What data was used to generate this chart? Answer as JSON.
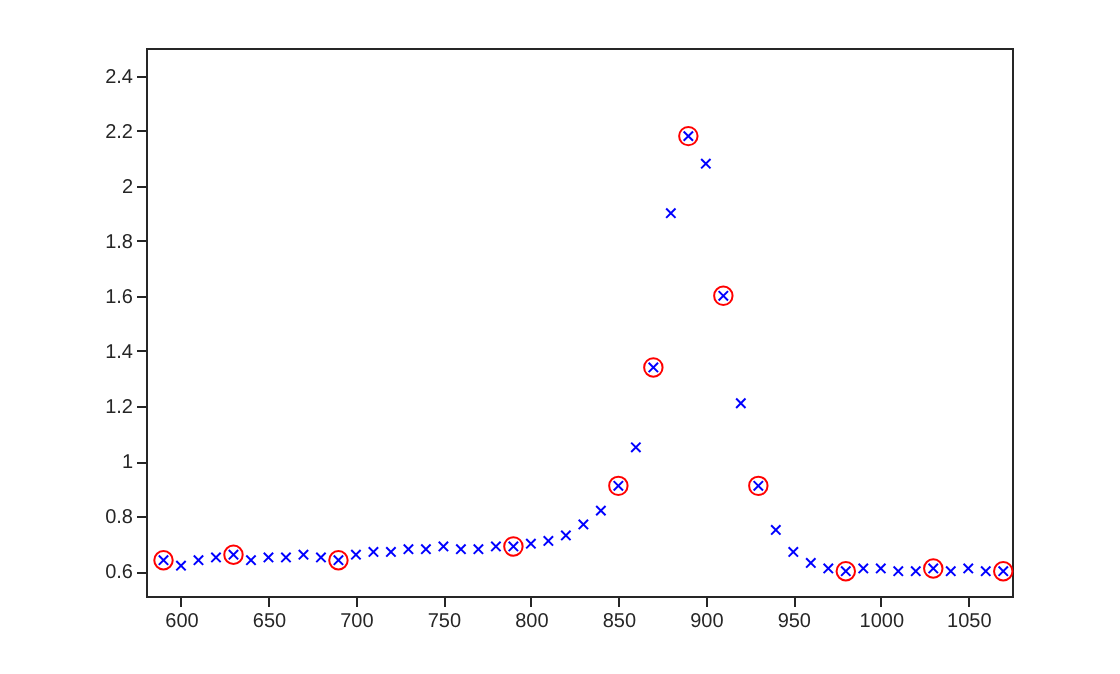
{
  "chart_data": {
    "type": "scatter",
    "x": [
      590,
      600,
      610,
      620,
      630,
      640,
      650,
      660,
      670,
      680,
      690,
      700,
      710,
      720,
      730,
      740,
      750,
      760,
      770,
      780,
      790,
      800,
      810,
      820,
      830,
      840,
      850,
      860,
      870,
      880,
      890,
      900,
      910,
      920,
      930,
      940,
      950,
      960,
      970,
      980,
      990,
      1000,
      1010,
      1020,
      1030,
      1040,
      1050,
      1060,
      1070
    ],
    "series": [
      {
        "color": "#0000ff",
        "marker": "cross",
        "values": [
          0.64,
          0.62,
          0.64,
          0.65,
          0.66,
          0.64,
          0.65,
          0.65,
          0.66,
          0.65,
          0.64,
          0.66,
          0.67,
          0.67,
          0.68,
          0.68,
          0.69,
          0.68,
          0.68,
          0.69,
          0.69,
          0.7,
          0.71,
          0.73,
          0.77,
          0.82,
          0.91,
          1.05,
          1.34,
          1.9,
          2.18,
          2.08,
          1.6,
          1.21,
          0.91,
          0.75,
          0.67,
          0.63,
          0.61,
          0.6,
          0.61,
          0.61,
          0.6,
          0.6,
          0.61,
          0.6,
          0.61,
          0.6,
          0.6
        ]
      },
      {
        "color": "#ff0000",
        "marker": "circle",
        "x": [
          590,
          630,
          690,
          790,
          850,
          870,
          890,
          910,
          930,
          980,
          1030,
          1070
        ],
        "values": [
          0.64,
          0.66,
          0.64,
          0.69,
          0.91,
          1.34,
          2.18,
          1.6,
          0.91,
          0.6,
          0.61,
          0.6
        ]
      }
    ],
    "xlim": [
      580,
      1075
    ],
    "xticks": [
      600,
      650,
      700,
      750,
      800,
      850,
      900,
      950,
      1000,
      1050
    ],
    "ylim": [
      0.51,
      2.5
    ],
    "yticks": [
      0.6,
      0.8,
      1,
      1.2,
      1.4,
      1.6,
      1.8,
      2,
      2.2,
      2.4
    ],
    "grid": false
  }
}
